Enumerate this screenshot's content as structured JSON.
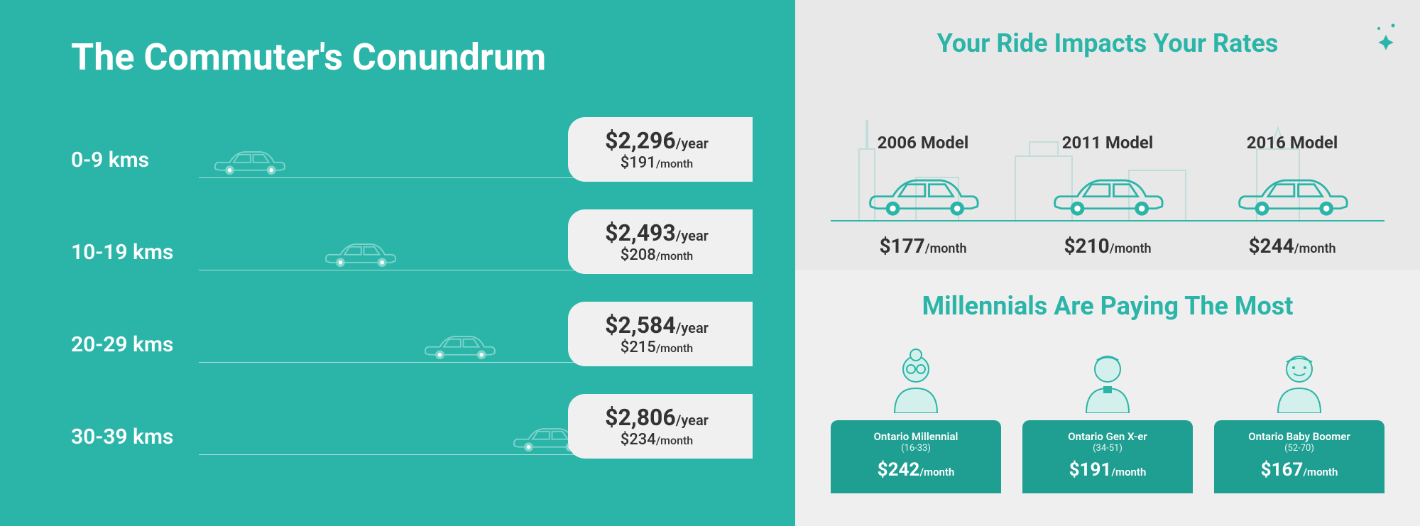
{
  "colors": {
    "teal_primary": "#2bb5a8",
    "teal_dark": "#1f9e92",
    "gray_light": "#e8e8e8",
    "gray_lighter": "#efefef",
    "white": "#ffffff",
    "text_dark": "#333333",
    "car_outline": "#7fd4cb",
    "avatar_fill": "#d4f0ed"
  },
  "left": {
    "title": "The Commuter's Conundrum",
    "background": "#2bb5a8",
    "rows": [
      {
        "range": "0-9 kms",
        "year": "$2,296",
        "month": "$191",
        "car_offset_pct": 2
      },
      {
        "range": "10-19 kms",
        "year": "$2,493",
        "month": "$208",
        "car_offset_pct": 22
      },
      {
        "range": "20-29 kms",
        "year": "$2,584",
        "month": "$215",
        "car_offset_pct": 40
      },
      {
        "range": "30-39 kms",
        "year": "$2,806",
        "month": "$234",
        "car_offset_pct": 56
      }
    ],
    "unit_year": "/year",
    "unit_month": "/month"
  },
  "right_top": {
    "title": "Your Ride Impacts Your Rates",
    "background": "#e8e8e8",
    "title_color": "#2bb5a8",
    "models": [
      {
        "label": "2006 Model",
        "price": "$177"
      },
      {
        "label": "2011 Model",
        "price": "$210"
      },
      {
        "label": "2016 Model",
        "price": "$244"
      }
    ],
    "unit_month": "/month"
  },
  "right_bottom": {
    "title": "Millennials Are Paying The Most",
    "background": "#efefef",
    "title_color": "#2bb5a8",
    "card_bg": "#1f9e92",
    "generations": [
      {
        "name": "Ontario Millennial",
        "age": "(16-33)",
        "price": "$242"
      },
      {
        "name": "Ontario Gen X-er",
        "age": "(34-51)",
        "price": "$191"
      },
      {
        "name": "Ontario Baby Boomer",
        "age": "(52-70)",
        "price": "$167"
      }
    ],
    "unit_month": "/month"
  }
}
